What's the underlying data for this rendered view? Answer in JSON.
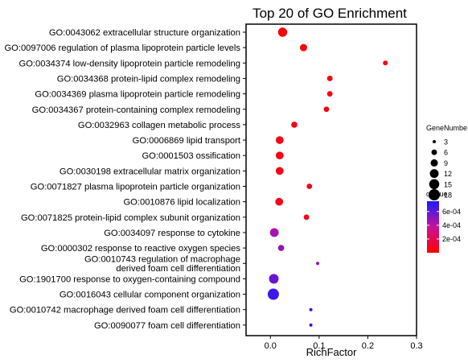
{
  "chart_data": {
    "type": "scatter",
    "title": "Top 20 of GO Enrichment",
    "xlabel": "RichFactor",
    "ylabel": "",
    "xlim": [
      -0.05,
      0.3
    ],
    "xticks": [
      0.0,
      0.1,
      0.2,
      0.3
    ],
    "xtick_labels": [
      "0.0",
      "0.1",
      "0.2",
      "0.3"
    ],
    "grid": false,
    "legend_placement": "right",
    "size_legend": {
      "title": "GeneNumbe",
      "values": [
        3,
        6,
        9,
        12,
        15,
        18
      ],
      "labels": [
        "3",
        "6",
        "9",
        "12",
        "15",
        "18"
      ]
    },
    "color_legend": {
      "title": "qvalue",
      "range": [
        0,
        0.00075
      ],
      "ticks": [
        0.0002,
        0.0004,
        0.0006
      ],
      "tick_labels": [
        "2e-04",
        "4e-04",
        "6e-04"
      ],
      "low_color": "#ff0000",
      "high_color": "#1a1aff"
    },
    "points": [
      {
        "term": "GO:0043062 extracellular structure organization",
        "richfactor": 0.025,
        "gene_number": 13,
        "qvalue": 1e-05
      },
      {
        "term": "GO:0097006 regulation of plasma lipoprotein particle levels",
        "richfactor": 0.068,
        "gene_number": 9,
        "qvalue": 2e-05
      },
      {
        "term": "GO:0034374 low-density lipoprotein particle remodeling",
        "richfactor": 0.236,
        "gene_number": 5,
        "qvalue": 2e-05
      },
      {
        "term": "GO:0034368 protein-lipid complex remodeling",
        "richfactor": 0.122,
        "gene_number": 6,
        "qvalue": 3e-05
      },
      {
        "term": "GO:0034369 plasma lipoprotein particle remodeling",
        "richfactor": 0.122,
        "gene_number": 6,
        "qvalue": 3e-05
      },
      {
        "term": "GO:0034367 protein-containing complex remodeling",
        "richfactor": 0.115,
        "gene_number": 6,
        "qvalue": 4e-05
      },
      {
        "term": "GO:0032963 collagen metabolic process",
        "richfactor": 0.049,
        "gene_number": 7,
        "qvalue": 5e-05
      },
      {
        "term": "GO:0006869 lipid transport",
        "richfactor": 0.019,
        "gene_number": 10,
        "qvalue": 5e-05
      },
      {
        "term": "GO:0001503 ossification",
        "richfactor": 0.019,
        "gene_number": 10,
        "qvalue": 5e-05
      },
      {
        "term": "GO:0030198 extracellular matrix organization",
        "richfactor": 0.019,
        "gene_number": 10,
        "qvalue": 5e-05
      },
      {
        "term": "GO:0071827 plasma lipoprotein particle organization",
        "richfactor": 0.08,
        "gene_number": 6,
        "qvalue": 6e-05
      },
      {
        "term": "GO:0010876 lipid localization",
        "richfactor": 0.018,
        "gene_number": 10,
        "qvalue": 6e-05
      },
      {
        "term": "GO:0071825 protein-lipid complex subunit organization",
        "richfactor": 0.074,
        "gene_number": 6,
        "qvalue": 6e-05
      },
      {
        "term": "GO:0034097 response to cytokine",
        "richfactor": 0.008,
        "gene_number": 12,
        "qvalue": 0.00045
      },
      {
        "term": "GO:0000302 response to reactive oxygen species",
        "richfactor": 0.022,
        "gene_number": 7,
        "qvalue": 0.0005
      },
      {
        "term": "GO:0010743 regulation of macrophage\nderived foam cell differentiation",
        "richfactor": 0.097,
        "gene_number": 3,
        "qvalue": 0.00052
      },
      {
        "term": "GO:1901700 response to oxygen-containing compound",
        "richfactor": 0.007,
        "gene_number": 14,
        "qvalue": 0.00058
      },
      {
        "term": "GO:0016043 cellular component organization",
        "richfactor": 0.006,
        "gene_number": 18,
        "qvalue": 0.00068
      },
      {
        "term": "GO:0010742 macrophage derived foam cell differentiation",
        "richfactor": 0.083,
        "gene_number": 3,
        "qvalue": 0.0007
      },
      {
        "term": "GO:0090077 foam cell differentiation",
        "richfactor": 0.083,
        "gene_number": 3,
        "qvalue": 0.0007
      }
    ]
  }
}
